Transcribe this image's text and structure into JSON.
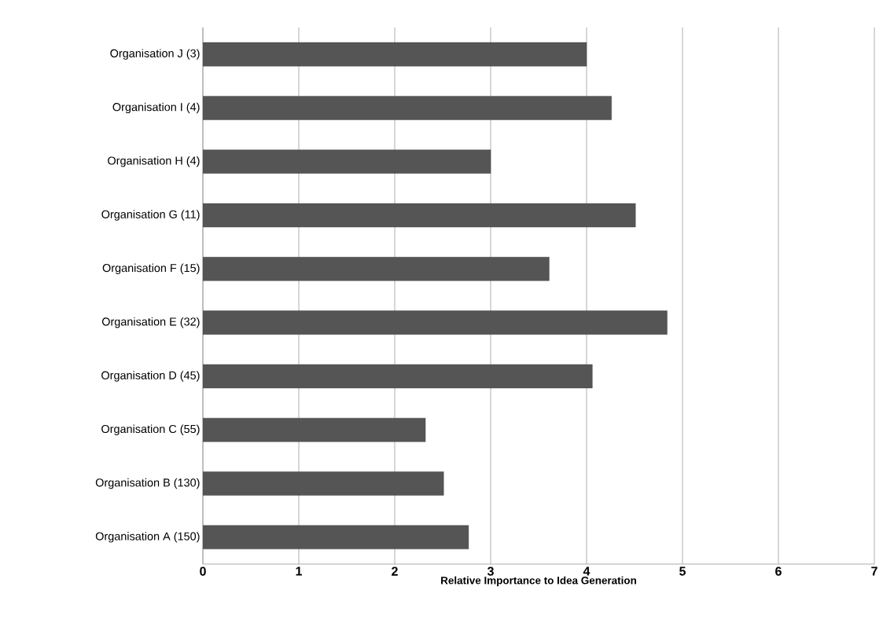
{
  "chart_data": {
    "type": "bar",
    "orientation": "horizontal",
    "categories": [
      "Organisation J (3)",
      "Organisation I (4)",
      "Organisation H (4)",
      "Organisation G (11)",
      "Organisation F (15)",
      "Organisation E (32)",
      "Organisation D (45)",
      "Organisation C (55)",
      "Organisation B (130)",
      "Organisation A (150)"
    ],
    "values": [
      4.0,
      4.26,
      3.0,
      4.51,
      3.61,
      4.84,
      4.06,
      2.32,
      2.51,
      2.77
    ],
    "color": "#555555",
    "xlabel": "Relative Importance to Idea Generation",
    "xlim": [
      0,
      7
    ],
    "xticks": [
      0,
      1,
      2,
      3,
      4,
      5,
      6,
      7
    ],
    "grid": "x"
  }
}
